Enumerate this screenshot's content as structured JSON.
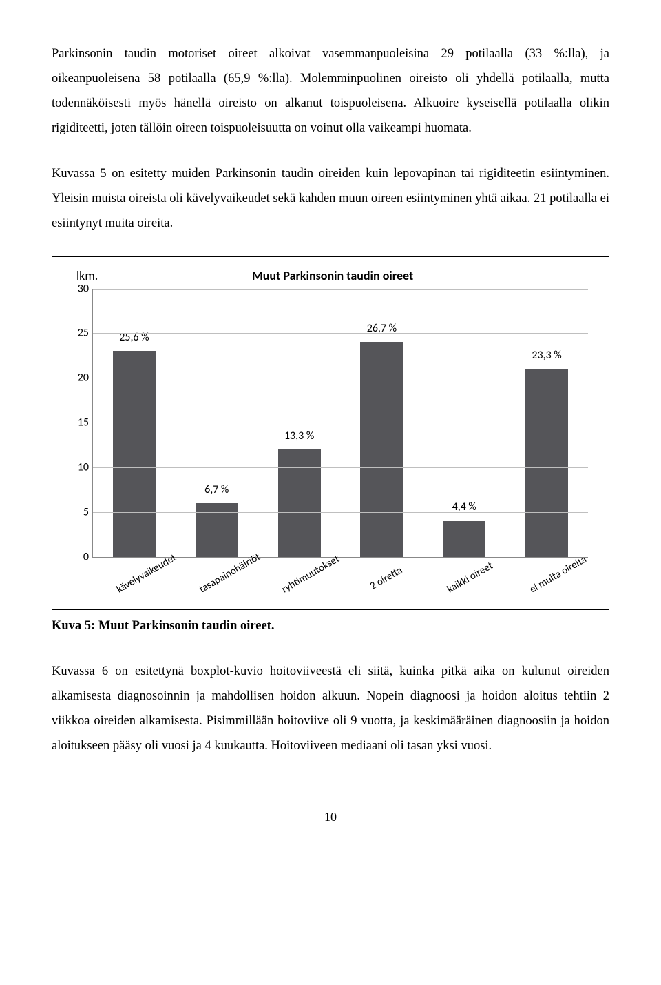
{
  "para1": "Parkinsonin taudin motoriset oireet alkoivat vasemmanpuoleisina 29 potilaalla (33 %:lla), ja oikeanpuoleisena 58 potilaalla (65,9 %:lla). Molemminpuolinen oireisto oli yhdellä potilaalla, mutta todennäköisesti myös hänellä oireisto on alkanut toispuoleisena. Alkuoire kyseisellä potilaalla olikin rigiditeetti, joten tällöin oireen toispuoleisuutta on voinut olla vaikeampi huomata.",
  "para2": "Kuvassa 5 on esitetty muiden Parkinsonin taudin oireiden kuin lepovapinan tai rigiditeetin esiintyminen. Yleisin muista oireista oli kävelyvaikeudet sekä kahden muun oireen esiintyminen yhtä aikaa. 21 potilaalla ei esiintynyt muita oireita.",
  "chart": {
    "type": "bar",
    "y_axis_title": "lkm.",
    "title": "Muut Parkinsonin taudin oireet",
    "ylim_max": 30,
    "ytick_step": 5,
    "yticks": [
      "30",
      "25",
      "20",
      "15",
      "10",
      "5",
      "0"
    ],
    "grid_color": "#bfbfbf",
    "bar_color": "#555559",
    "background_color": "#ffffff",
    "categories": [
      "kävelyvaikeudet",
      "tasapainohäiriöt",
      "ryhtimuutokset",
      "2 oiretta",
      "kaikki oireet",
      "ei muita oireita"
    ],
    "value_labels": [
      "25,6 %",
      "6,7 %",
      "13,3 %",
      "26,7 %",
      "4,4 %",
      "23,3 %"
    ],
    "values": [
      23,
      6,
      12,
      24,
      4,
      21
    ]
  },
  "caption_bold": "Kuva 5: Muut Parkinsonin taudin oireet.",
  "para3": "Kuvassa 6 on esitettynä boxplot-kuvio hoitoviiveestä eli siitä, kuinka pitkä aika on kulunut oireiden alkamisesta diagnosoinnin ja mahdollisen hoidon alkuun. Nopein diagnoosi ja hoidon aloitus tehtiin 2 viikkoa oireiden alkamisesta. Pisimmillään hoitoviive oli 9 vuotta, ja keskimääräinen diagnoosiin ja hoidon aloitukseen pääsy oli vuosi ja 4 kuukautta. Hoitoviiveen mediaani oli tasan yksi vuosi.",
  "page_number": "10"
}
